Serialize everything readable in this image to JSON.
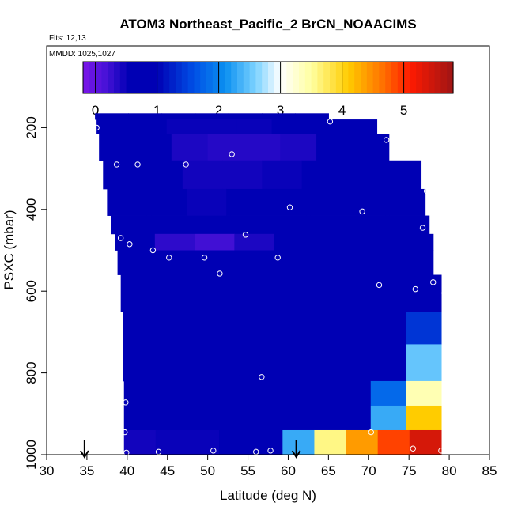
{
  "chart_data": {
    "type": "heatmap",
    "title": "ATOM3 Northeast_Pacific_2 BrCN_NOAACIMS",
    "flights_label": "Flts: 12,13",
    "dates_label": "MMDD: 1025,1027",
    "xlabel": "Latitude (deg N)",
    "ylabel": "PSXC (mbar)",
    "xlim": [
      30,
      85
    ],
    "ylim": [
      1000,
      0
    ],
    "x_ticks": [
      "30",
      "35",
      "40",
      "45",
      "50",
      "55",
      "60",
      "65",
      "70",
      "75",
      "80",
      "85"
    ],
    "y_ticks": [
      "200",
      "400",
      "600",
      "800",
      "1000"
    ],
    "colorbar": {
      "range": [
        -0.2,
        5.8
      ],
      "ticks": [
        "0",
        "1",
        "2",
        "3",
        "4",
        "5"
      ]
    },
    "colors": {
      "low": "#7b16e8",
      "dark": "#0000b4",
      "mid": "#0a8ff0",
      "white": "#ffffff",
      "high": "#ffcc00",
      "red": "#ff1a00",
      "max": "#9e1515"
    },
    "layers": [
      {
        "pbot": 180,
        "ptop": 165,
        "lat_start": 36,
        "lat_end": 65,
        "values": [
          0.6,
          0.6,
          0.6,
          0.6,
          0.6,
          0.6,
          0.6
        ]
      },
      {
        "pbot": 215,
        "ptop": 180,
        "lat_start": 36.2,
        "lat_end": 71,
        "values": [
          0.6,
          0.55,
          0.5,
          0.5,
          0.5,
          0.55,
          0.75,
          0.8
        ]
      },
      {
        "pbot": 280,
        "ptop": 215,
        "lat_start": 36.5,
        "lat_end": 72.5,
        "values": [
          0.65,
          0.55,
          0.4,
          0.35,
          0.35,
          0.4,
          0.7,
          0.75
        ]
      },
      {
        "pbot": 350,
        "ptop": 280,
        "lat_start": 37,
        "lat_end": 76.5,
        "values": [
          0.75,
          0.6,
          0.45,
          0.45,
          0.5,
          0.55,
          0.7,
          0.8
        ]
      },
      {
        "pbot": 415,
        "ptop": 350,
        "lat_start": 37.5,
        "lat_end": 77,
        "values": [
          0.75,
          0.6,
          0.5,
          0.55,
          0.6,
          0.6,
          0.65,
          0.7
        ]
      },
      {
        "pbot": 460,
        "ptop": 415,
        "lat_start": 38,
        "lat_end": 77.5,
        "values": [
          0.8,
          0.7,
          0.6,
          0.6,
          0.7,
          0.8,
          0.7,
          0.7
        ]
      },
      {
        "pbot": 500,
        "ptop": 460,
        "lat_start": 38.5,
        "lat_end": 78,
        "values": [
          0.6,
          0.3,
          0.2,
          0.4,
          0.6,
          0.9,
          0.8,
          0.6
        ]
      },
      {
        "pbot": 560,
        "ptop": 500,
        "lat_start": 38.8,
        "lat_end": 78,
        "values": [
          0.8,
          0.7,
          0.7,
          0.8,
          0.9,
          0.95,
          0.85,
          0.65
        ]
      },
      {
        "pbot": 650,
        "ptop": 560,
        "lat_start": 39.2,
        "lat_end": 79,
        "values": [
          0.9,
          0.9,
          0.95,
          0.95,
          0.95,
          0.95,
          0.9,
          0.75
        ]
      },
      {
        "pbot": 730,
        "ptop": 650,
        "lat_start": 39.5,
        "lat_end": 79,
        "values": [
          0.9,
          0.95,
          0.95,
          0.95,
          0.95,
          0.95,
          0.85,
          0.8,
          1.4
        ]
      },
      {
        "pbot": 820,
        "ptop": 730,
        "lat_start": 39.5,
        "lat_end": 79,
        "values": [
          0.9,
          0.9,
          0.9,
          0.9,
          0.85,
          0.8,
          0.85,
          1.0,
          2.5
        ]
      },
      {
        "pbot": 880,
        "ptop": 820,
        "lat_start": 39.6,
        "lat_end": 79,
        "values": [
          0.8,
          0.75,
          0.75,
          0.8,
          0.9,
          0.95,
          0.95,
          1.8,
          3.4
        ]
      },
      {
        "pbot": 940,
        "ptop": 880,
        "lat_start": 39.6,
        "lat_end": 79,
        "values": [
          0.8,
          0.7,
          0.7,
          0.75,
          0.85,
          0.95,
          0.95,
          2.3,
          4.1
        ]
      },
      {
        "pbot": 1000,
        "ptop": 940,
        "lat_start": 39.6,
        "lat_end": 79,
        "values": [
          0.45,
          0.5,
          0.5,
          0.55,
          1.0,
          2.3,
          3.6,
          4.4,
          4.9,
          5.4
        ]
      }
    ],
    "points": [
      {
        "lat": 36.2,
        "p": 200
      },
      {
        "lat": 65.2,
        "p": 185
      },
      {
        "lat": 72.2,
        "p": 230
      },
      {
        "lat": 38.7,
        "p": 290
      },
      {
        "lat": 41.3,
        "p": 290
      },
      {
        "lat": 47.3,
        "p": 290
      },
      {
        "lat": 53.0,
        "p": 265
      },
      {
        "lat": 77.2,
        "p": 355
      },
      {
        "lat": 60.2,
        "p": 395
      },
      {
        "lat": 69.2,
        "p": 405
      },
      {
        "lat": 76.7,
        "p": 445
      },
      {
        "lat": 37.5,
        "p": 455
      },
      {
        "lat": 39.2,
        "p": 470
      },
      {
        "lat": 40.3,
        "p": 485
      },
      {
        "lat": 43.2,
        "p": 500
      },
      {
        "lat": 54.7,
        "p": 462
      },
      {
        "lat": 45.2,
        "p": 518
      },
      {
        "lat": 49.6,
        "p": 518
      },
      {
        "lat": 58.7,
        "p": 518
      },
      {
        "lat": 51.5,
        "p": 557
      },
      {
        "lat": 38.4,
        "p": 598
      },
      {
        "lat": 71.3,
        "p": 585
      },
      {
        "lat": 78.0,
        "p": 578
      },
      {
        "lat": 75.8,
        "p": 595
      },
      {
        "lat": 79.4,
        "p": 605
      },
      {
        "lat": 56.7,
        "p": 810
      },
      {
        "lat": 39.8,
        "p": 872
      },
      {
        "lat": 39.7,
        "p": 945
      },
      {
        "lat": 70.3,
        "p": 945
      },
      {
        "lat": 39.9,
        "p": 995
      },
      {
        "lat": 43.9,
        "p": 993
      },
      {
        "lat": 50.7,
        "p": 990
      },
      {
        "lat": 56.0,
        "p": 993
      },
      {
        "lat": 57.8,
        "p": 990
      },
      {
        "lat": 75.5,
        "p": 985
      },
      {
        "lat": 79.0,
        "p": 990
      }
    ],
    "arrows": [
      {
        "lat": 34.7
      },
      {
        "lat": 61.0
      }
    ]
  }
}
